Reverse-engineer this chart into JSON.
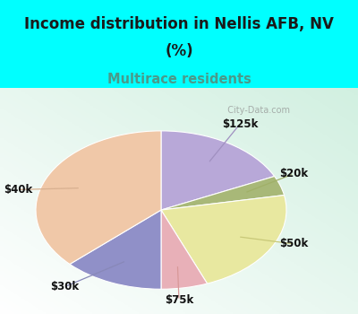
{
  "title_line1": "Income distribution in Nellis AFB, NV",
  "title_line2": "(%)",
  "subtitle": "Multirace residents",
  "title_color": "#1a1a1a",
  "subtitle_color": "#4a9a8a",
  "background_color": "#00ffff",
  "watermark": "City-Data.com",
  "slices": [
    {
      "label": "$125k",
      "value": 18,
      "color": "#b8a8d8"
    },
    {
      "label": "$20k",
      "value": 4,
      "color": "#a8b878"
    },
    {
      "label": "$50k",
      "value": 22,
      "color": "#e8e8a0"
    },
    {
      "label": "$75k",
      "value": 6,
      "color": "#e8b0b8"
    },
    {
      "label": "$30k",
      "value": 13,
      "color": "#9090c8"
    },
    {
      "label": "$40k",
      "value": 37,
      "color": "#f0c8a8"
    }
  ],
  "startangle": 90,
  "label_color": "#111111",
  "label_fontsize": 8.5,
  "title_fontsize": 12,
  "subtitle_fontsize": 10.5,
  "line_color_125k": "#9090c0",
  "line_color_20k": "#a8b870",
  "line_color_50k": "#d0d080",
  "line_color_75k": "#e0a0a8",
  "line_color_30k": "#8888c0",
  "line_color_40k": "#e0b898"
}
